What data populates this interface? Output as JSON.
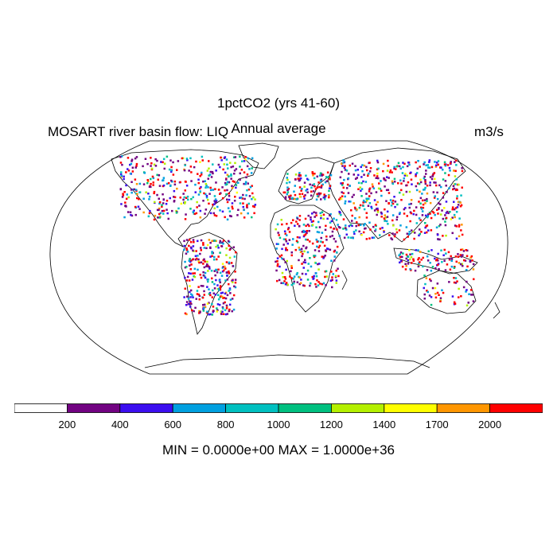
{
  "titles": {
    "main": "1pctCO2 (yrs 41-60)",
    "subtitle": "Annual average",
    "left": "MOSART river basin flow: LIQ",
    "units": "m3/s"
  },
  "colorbar": {
    "levels": [
      "200",
      "400",
      "600",
      "800",
      "1000",
      "1200",
      "1400",
      "1700",
      "2000"
    ],
    "colors": [
      "#ffffff",
      "#720382",
      "#3b0ef0",
      "#00a0e0",
      "#00c0c0",
      "#00c080",
      "#b4f000",
      "#ffff00",
      "#ff9600",
      "#ff0000"
    ]
  },
  "stats": {
    "text": "MIN = 0.0000e+00 MAX = 1.0000e+36"
  },
  "map": {
    "projection": "robinson",
    "field": "river basin flow, scattered colored cells over land",
    "ocean_color": "#ffffff",
    "coast_color": "#000000"
  }
}
